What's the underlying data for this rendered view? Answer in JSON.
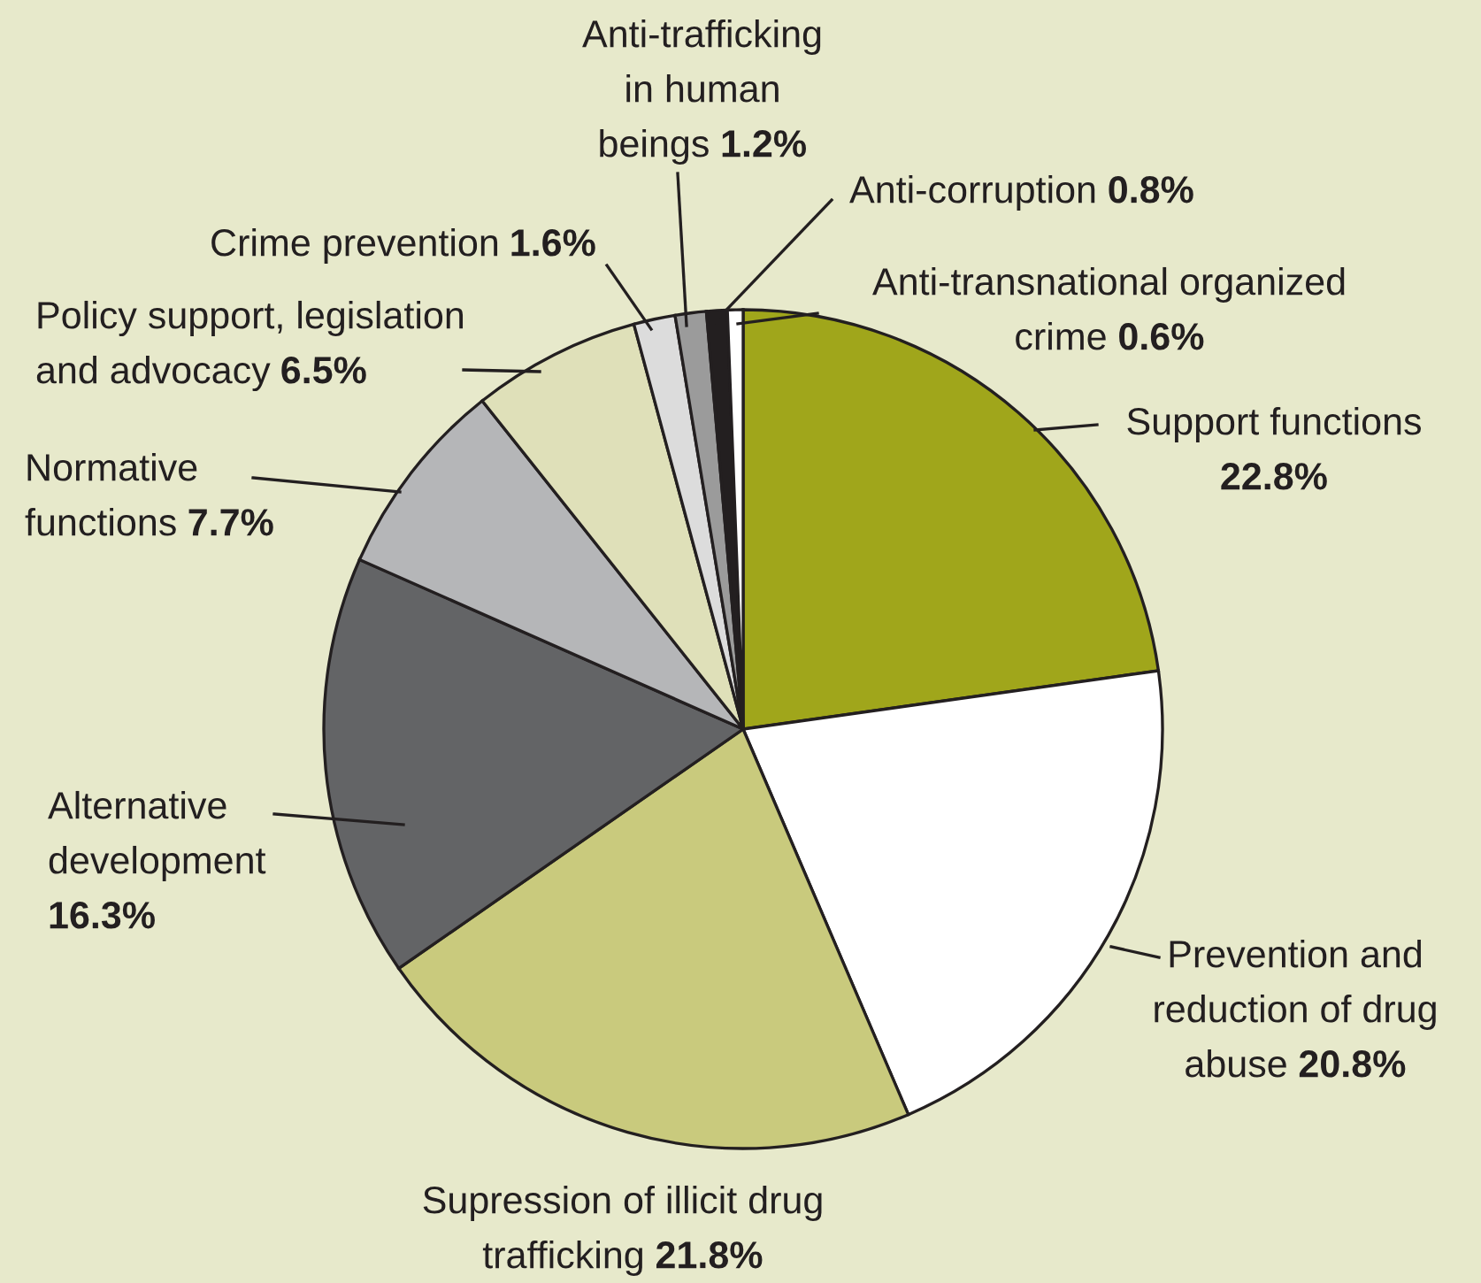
{
  "chart_data": {
    "type": "pie",
    "categories": [
      "Support functions",
      "Prevention and\nreduction of drug\nabuse",
      "Supression of illicit drug\ntrafficking",
      "Alternative\ndevelopment",
      "Normative\nfunctions",
      "Policy support, legislation\nand advocacy",
      "Crime prevention",
      "Anti-trafficking\nin human\nbeings",
      "Anti-corruption",
      "Anti-transnational organized\ncrime"
    ],
    "values": [
      22.8,
      20.8,
      21.8,
      16.3,
      7.7,
      6.5,
      1.6,
      1.2,
      0.8,
      0.6
    ],
    "value_labels": [
      "22.8%",
      "20.8%",
      "21.8%",
      "16.3%",
      "7.7%",
      "6.5%",
      "1.6%",
      "1.2%",
      "0.8%",
      "0.6%"
    ],
    "colors": [
      "#a0a61b",
      "#ffffff",
      "#c9ca7d",
      "#636466",
      "#b5b6b8",
      "#dfe0b9",
      "#dcdcdc",
      "#9b9b9b",
      "#231f20",
      "#ffffff"
    ]
  }
}
